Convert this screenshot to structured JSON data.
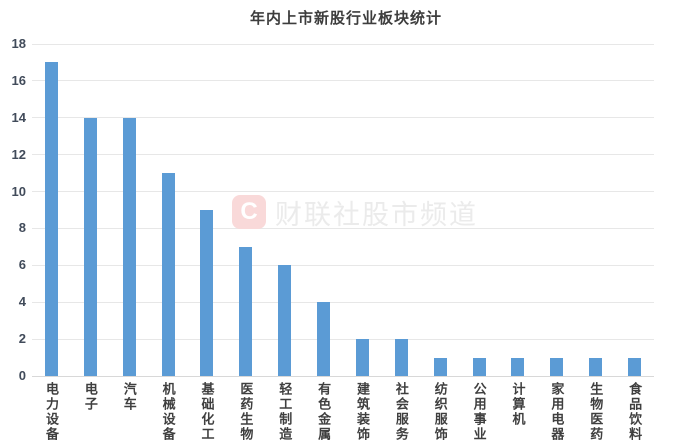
{
  "chart_data": {
    "type": "bar",
    "title": "年内上市新股行业板块统计",
    "categories": [
      "电力设备",
      "电子",
      "汽车",
      "机械设备",
      "基础化工",
      "医药生物",
      "轻工制造",
      "有色金属",
      "建筑装饰",
      "社会服务",
      "纺织服饰",
      "公用事业",
      "计算机",
      "家用电器",
      "生物医药",
      "食品饮料"
    ],
    "values": [
      17,
      14,
      14,
      11,
      9,
      7,
      6,
      4,
      2,
      2,
      1,
      1,
      1,
      1,
      1,
      1
    ],
    "xlabel": "",
    "ylabel": "",
    "ylim": [
      0,
      18
    ],
    "yticks": [
      0,
      2,
      4,
      6,
      8,
      10,
      12,
      14,
      16,
      18
    ],
    "grid": true,
    "legend": "none",
    "bar_color": "#5b9bd5",
    "gridline_color": "#e7e7e7"
  },
  "watermark": {
    "logo_letter": "C",
    "text": "财联社股市频道",
    "logo_bg": "#f9d9d9",
    "logo_color": "#ffffff",
    "text_color": "#ebebeb"
  }
}
